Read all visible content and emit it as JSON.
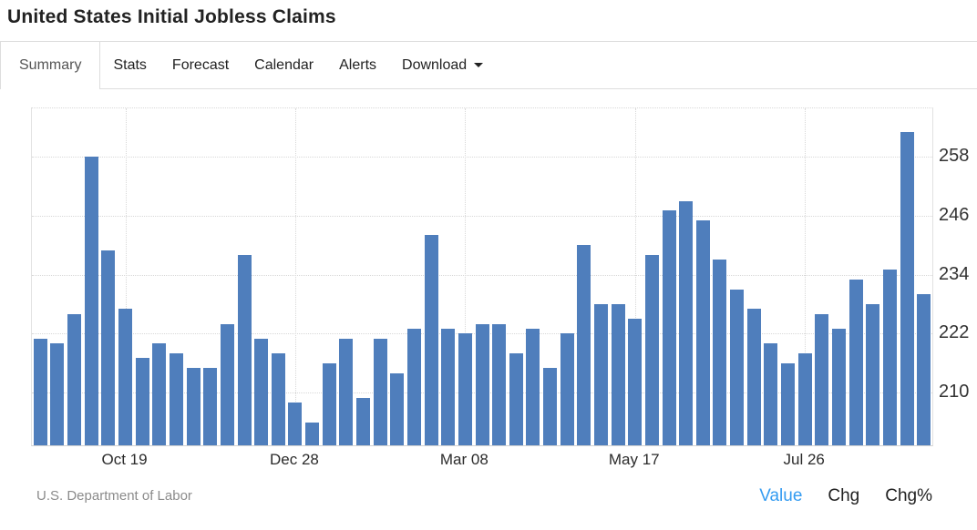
{
  "header": {
    "title": "United States Initial Jobless Claims"
  },
  "tabs": {
    "items": [
      {
        "label": "Summary",
        "active": true
      },
      {
        "label": "Stats",
        "active": false
      },
      {
        "label": "Forecast",
        "active": false
      },
      {
        "label": "Calendar",
        "active": false
      },
      {
        "label": "Alerts",
        "active": false
      },
      {
        "label": "Download",
        "active": false,
        "has_caret": true
      }
    ]
  },
  "chart_data": {
    "type": "bar",
    "title": "United States Initial Jobless Claims",
    "series_name": "Initial Jobless Claims",
    "values": [
      221,
      220,
      226,
      258,
      239,
      227,
      217,
      220,
      218,
      215,
      215,
      224,
      238,
      221,
      218,
      208,
      204,
      216,
      221,
      209,
      221,
      214,
      223,
      242,
      223,
      222,
      224,
      224,
      218,
      223,
      215,
      222,
      240,
      228,
      228,
      225,
      238,
      247,
      249,
      245,
      237,
      231,
      227,
      220,
      216,
      218,
      226,
      223,
      233,
      228,
      235,
      263,
      230
    ],
    "xtick_labels": [
      "Oct 19",
      "Dec 28",
      "Mar 08",
      "May 17",
      "Jul 26"
    ],
    "xtick_indices": [
      5,
      15,
      25,
      35,
      45
    ],
    "yticks": [
      210,
      222,
      234,
      246,
      258
    ],
    "ylim": [
      199.3,
      267.8
    ],
    "grid": "dotted",
    "legend": "none",
    "yaxis_position": "right",
    "bar_color": "#4F7EBC"
  },
  "footer": {
    "source": "U.S. Department of Labor",
    "links": [
      {
        "label": "Value",
        "active": true
      },
      {
        "label": "Chg",
        "active": false
      },
      {
        "label": "Chg%",
        "active": false
      }
    ]
  },
  "colors": {
    "accent_blue": "#359CF1",
    "bar_blue": "#4F7EBC",
    "border_gray": "#dddddd",
    "text_dark": "#222222",
    "muted_gray": "#8b8b8b"
  }
}
